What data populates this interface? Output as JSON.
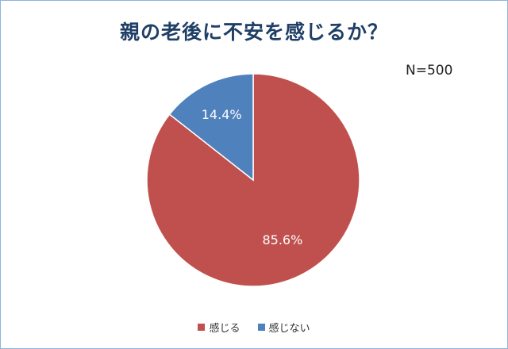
{
  "chart_data": {
    "type": "pie",
    "title": "親の老後に不安を感じるか？",
    "note": "N=500",
    "slices": [
      {
        "name": "感じる",
        "value": 85.6,
        "label": "85.6%",
        "color": "#c0504d"
      },
      {
        "name": "感じない",
        "value": 14.4,
        "label": "14.4%",
        "color": "#4f81bd"
      }
    ],
    "legend_position": "bottom"
  }
}
